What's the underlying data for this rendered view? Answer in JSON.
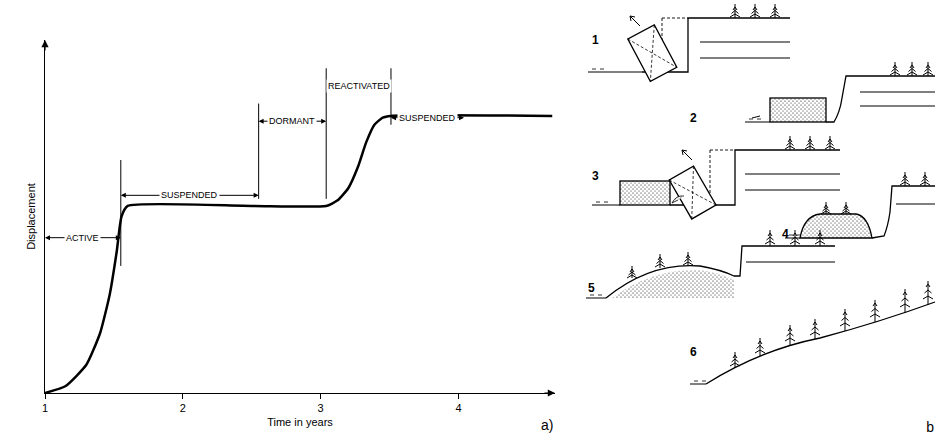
{
  "chart_data": {
    "type": "line",
    "x_label": "Time in years",
    "y_label": "Displacement",
    "x": [
      1,
      1.15,
      1.3,
      1.4,
      1.47,
      1.52,
      1.555,
      1.6,
      2.5,
      3.04,
      3.12,
      3.2,
      3.27,
      3.33,
      3.39,
      3.45,
      3.51,
      4.68
    ],
    "values": [
      0,
      0.02,
      0.08,
      0.17,
      0.28,
      0.4,
      0.5,
      0.53,
      0.53,
      0.53,
      0.545,
      0.58,
      0.64,
      0.71,
      0.76,
      0.78,
      0.785,
      0.785
    ],
    "color": "#000000",
    "xlim": [
      1,
      4.7
    ],
    "xticks": [
      1,
      2,
      3,
      4
    ],
    "ylim": [
      0,
      1
    ],
    "yticks": [],
    "tick_labels": "x",
    "grid": false,
    "phases": [
      {
        "label": "ACTIVE",
        "start": 1,
        "end": 1.55,
        "y": 0.44
      },
      {
        "label": "SUSPENDED",
        "start": 1.55,
        "end": 2.55,
        "y": 0.56
      },
      {
        "label": "DORMANT",
        "start": 2.55,
        "end": 3.04,
        "y": 0.77
      },
      {
        "label": "REACTIVATED",
        "start": 3.04,
        "end": 3.51,
        "y": 0.87
      },
      {
        "label": "SUSPENDED",
        "start": 3.51,
        "end": 4.04,
        "y": 0.78
      }
    ],
    "boundaries": [
      {
        "x": 1.55,
        "y0": 0.36,
        "y1": 0.66
      },
      {
        "x": 2.55,
        "y0": 0.55,
        "y1": 0.82
      },
      {
        "x": 3.04,
        "y0": 0.55,
        "y1": 0.92
      },
      {
        "x": 3.51,
        "y0": 0.76,
        "y1": 0.92
      }
    ],
    "panel_label": "a)"
  },
  "diagram": {
    "panel_label": "b",
    "stages": [
      "1",
      "2",
      "3",
      "4",
      "5",
      "6"
    ]
  }
}
